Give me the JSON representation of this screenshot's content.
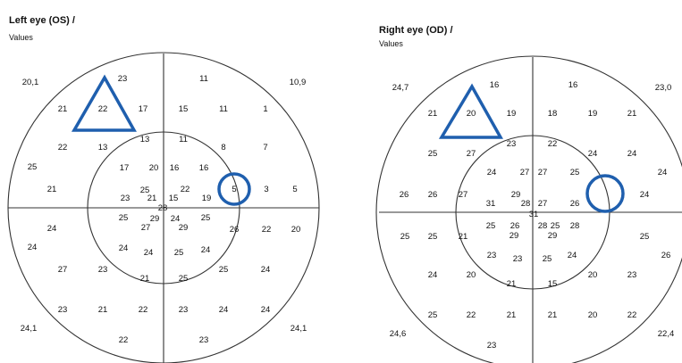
{
  "panels": [
    {
      "id": "os",
      "title": "Left eye (OS) /",
      "subtitle": "Values",
      "corners": {
        "tl": "20,1",
        "tr": "10,9",
        "bl": "24,1",
        "br": "24,1"
      },
      "values": [
        "23",
        "11",
        "21",
        "22",
        "17",
        "15",
        "11",
        "1",
        "22",
        "13",
        "13",
        "11",
        "8",
        "7",
        "25",
        "17",
        "20",
        "16",
        "16",
        "21",
        "25",
        "22",
        "23",
        "21",
        "15",
        "19",
        "5",
        "3",
        "5",
        "28",
        "25",
        "29",
        "24",
        "25",
        "27",
        "29",
        "26",
        "22",
        "20",
        "24",
        "24",
        "24",
        "24",
        "25",
        "24",
        "27",
        "23",
        "21",
        "25",
        "25",
        "24",
        "23",
        "21",
        "22",
        "23",
        "24",
        "24",
        "22",
        "23"
      ],
      "accent": "#1f5fae",
      "triangle_value": "22",
      "circle_value": "5"
    },
    {
      "id": "od",
      "title": "Right eye (OD) /",
      "subtitle": "Values",
      "corners": {
        "tl": "24,7",
        "tr": "23,0",
        "bl": "24,6",
        "br": "22,4"
      },
      "values": [
        "16",
        "16",
        "21",
        "20",
        "19",
        "18",
        "19",
        "21",
        "25",
        "27",
        "23",
        "22",
        "24",
        "24",
        "24",
        "27",
        "27",
        "25",
        "24",
        "26",
        "26",
        "27",
        "31",
        "29",
        "28",
        "27",
        "26",
        "24",
        "31",
        "25",
        "26",
        "28",
        "25",
        "29",
        "29",
        "28",
        "25",
        "25",
        "21",
        "25",
        "26",
        "23",
        "23",
        "25",
        "24",
        "24",
        "20",
        "21",
        "15",
        "20",
        "23",
        "25",
        "22",
        "21",
        "21",
        "20",
        "22",
        "23"
      ],
      "accent": "#1f5fae",
      "triangle_value": "20",
      "circle_value": ""
    }
  ]
}
